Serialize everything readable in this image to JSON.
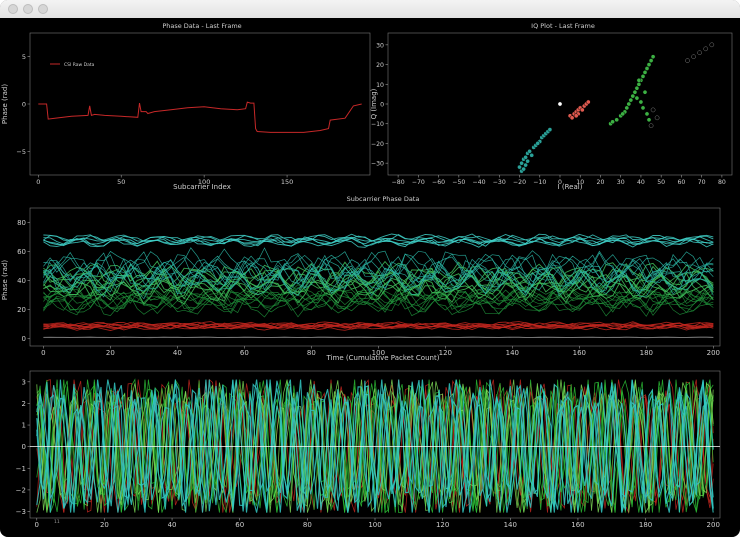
{
  "window": {
    "controls": [
      "close",
      "minimize",
      "zoom"
    ]
  },
  "chart_data": [
    {
      "id": "phase_last",
      "type": "line",
      "title": "Phase Data - Last Frame",
      "xlabel": "Subcarrier Index",
      "ylabel": "Phase (rad)",
      "xlim": [
        -5,
        200
      ],
      "ylim": [
        -7.5,
        7.5
      ],
      "xticks": [
        0,
        50,
        100,
        150
      ],
      "yticks": [
        5,
        0,
        -5
      ],
      "legend": {
        "position": "top-left",
        "entries": [
          "CSI Raw Data"
        ]
      },
      "series": [
        {
          "name": "CSI Raw Data",
          "color": "#c62828",
          "x": [
            0,
            5,
            6,
            10,
            20,
            30,
            31,
            32,
            34,
            40,
            50,
            60,
            61,
            62,
            65,
            66,
            70,
            80,
            90,
            100,
            110,
            120,
            125,
            126,
            128,
            130,
            131,
            132,
            140,
            150,
            160,
            170,
            175,
            176,
            185,
            190,
            195
          ],
          "y": [
            0,
            0,
            -1.6,
            -1.5,
            -1.3,
            -1.2,
            -0.2,
            -1.2,
            -1.1,
            -1.2,
            -1.3,
            -1.4,
            0.1,
            -0.8,
            -0.8,
            -1.0,
            -0.8,
            -0.6,
            -0.4,
            -0.3,
            -0.5,
            -0.6,
            -0.5,
            0.2,
            0.1,
            0.1,
            -2.6,
            -2.9,
            -3.0,
            -3.0,
            -3.0,
            -2.8,
            -2.6,
            -1.7,
            -1.5,
            -0.2,
            0
          ]
        }
      ]
    },
    {
      "id": "iq_plot",
      "type": "scatter",
      "title": "IQ Plot - Last Frame",
      "xlabel": "I (Real)",
      "ylabel": "Q (Imag)",
      "xlim": [
        -85,
        85
      ],
      "ylim": [
        -36,
        36
      ],
      "xticks": [
        -80,
        -70,
        -60,
        -50,
        -40,
        -30,
        -20,
        -10,
        0,
        10,
        20,
        30,
        40,
        50,
        60,
        70,
        80
      ],
      "yticks": [
        30,
        20,
        10,
        0,
        -10,
        -20,
        -30
      ],
      "series": [
        {
          "color": "#2aa198",
          "points": [
            [
              -20,
              -32
            ],
            [
              -19,
              -30
            ],
            [
              -18,
              -28
            ],
            [
              -17,
              -27
            ],
            [
              -16,
              -25
            ],
            [
              -15,
              -24
            ],
            [
              -13,
              -22
            ],
            [
              -12,
              -21
            ],
            [
              -10,
              -19
            ],
            [
              -9,
              -17
            ],
            [
              -8,
              -16
            ],
            [
              -7,
              -15
            ],
            [
              -19,
              -34
            ],
            [
              -17,
              -31
            ],
            [
              -14,
              -26
            ],
            [
              -11,
              -20
            ],
            [
              -6,
              -14
            ],
            [
              -5,
              -13
            ],
            [
              -18,
              -33
            ],
            [
              -16,
              -29
            ]
          ]
        },
        {
          "color": "#e05a4f",
          "points": [
            [
              5,
              -6
            ],
            [
              7,
              -5
            ],
            [
              8,
              -4
            ],
            [
              9,
              -3
            ],
            [
              10,
              -2
            ],
            [
              12,
              -1
            ],
            [
              13,
              0
            ],
            [
              14,
              1
            ],
            [
              6,
              -7
            ],
            [
              11,
              -3
            ],
            [
              9,
              -5
            ],
            [
              8,
              -6
            ]
          ]
        },
        {
          "color": "#3cb043",
          "points": [
            [
              25,
              -10
            ],
            [
              28,
              -8
            ],
            [
              30,
              -6
            ],
            [
              32,
              -4
            ],
            [
              33,
              -2
            ],
            [
              34,
              0
            ],
            [
              35,
              2
            ],
            [
              36,
              4
            ],
            [
              37,
              6
            ],
            [
              38,
              8
            ],
            [
              39,
              10
            ],
            [
              40,
              12
            ],
            [
              41,
              14
            ],
            [
              42,
              16
            ],
            [
              43,
              18
            ],
            [
              44,
              20
            ],
            [
              45,
              22
            ],
            [
              46,
              24
            ],
            [
              26,
              -9
            ],
            [
              31,
              -5
            ],
            [
              38,
              3
            ],
            [
              40,
              1
            ],
            [
              41,
              -2
            ],
            [
              43,
              -5
            ],
            [
              44,
              -8
            ],
            [
              42,
              6
            ],
            [
              39,
              12
            ]
          ]
        },
        {
          "color": "#7a7a7a",
          "points": [
            [
              63,
              22
            ],
            [
              66,
              24
            ],
            [
              69,
              26
            ],
            [
              72,
              28
            ],
            [
              75,
              30
            ],
            [
              46,
              -3
            ],
            [
              48,
              -7
            ],
            [
              45,
              -11
            ]
          ]
        },
        {
          "color": "#ffffff",
          "points": [
            [
              0,
              0
            ]
          ]
        }
      ]
    },
    {
      "id": "subcarrier_phase",
      "type": "line",
      "title": "Subcarrier Phase Data",
      "xlabel": "Time (Cumulative Packet Count)",
      "ylabel": "Phase (rad)",
      "xlim": [
        -4,
        202
      ],
      "ylim": [
        -5,
        90
      ],
      "xticks": [
        0,
        20,
        40,
        60,
        80,
        100,
        120,
        140,
        160,
        180,
        200
      ],
      "yticks": [
        80,
        60,
        40,
        20,
        0
      ],
      "series_groups": [
        {
          "color": "#7a7a7a",
          "count": 2,
          "base": 1.0,
          "amp": 0.2
        },
        {
          "color": "#c0261e",
          "count": 8,
          "base": 9,
          "amp": 2.5
        },
        {
          "color": "#1f8f3a",
          "count": 10,
          "base": 28,
          "amp": 10
        },
        {
          "color": "#3fbf5a",
          "count": 8,
          "base": 40,
          "amp": 12
        },
        {
          "color": "#2ab5a5",
          "count": 10,
          "base": 46,
          "amp": 14
        },
        {
          "color": "#40d0c8",
          "count": 6,
          "base": 68,
          "amp": 4
        }
      ]
    },
    {
      "id": "wrapped_phase",
      "type": "line",
      "xlim": [
        -2,
        202
      ],
      "ylim": [
        -3.3,
        3.5
      ],
      "xticks": [
        0,
        20,
        40,
        60,
        80,
        100,
        120,
        140,
        160,
        180,
        200
      ],
      "yticks": [
        3,
        2,
        1,
        0,
        -1,
        -2,
        -3
      ],
      "annotations": [
        "11"
      ],
      "series_groups": [
        {
          "color": "#c0261e",
          "count": 4
        },
        {
          "color": "#2bbd35",
          "count": 6
        },
        {
          "color": "#7ed957",
          "count": 3
        },
        {
          "color": "#33c9c4",
          "count": 5
        }
      ],
      "reference_line": {
        "y": 0,
        "color": "#ffffff"
      }
    }
  ]
}
